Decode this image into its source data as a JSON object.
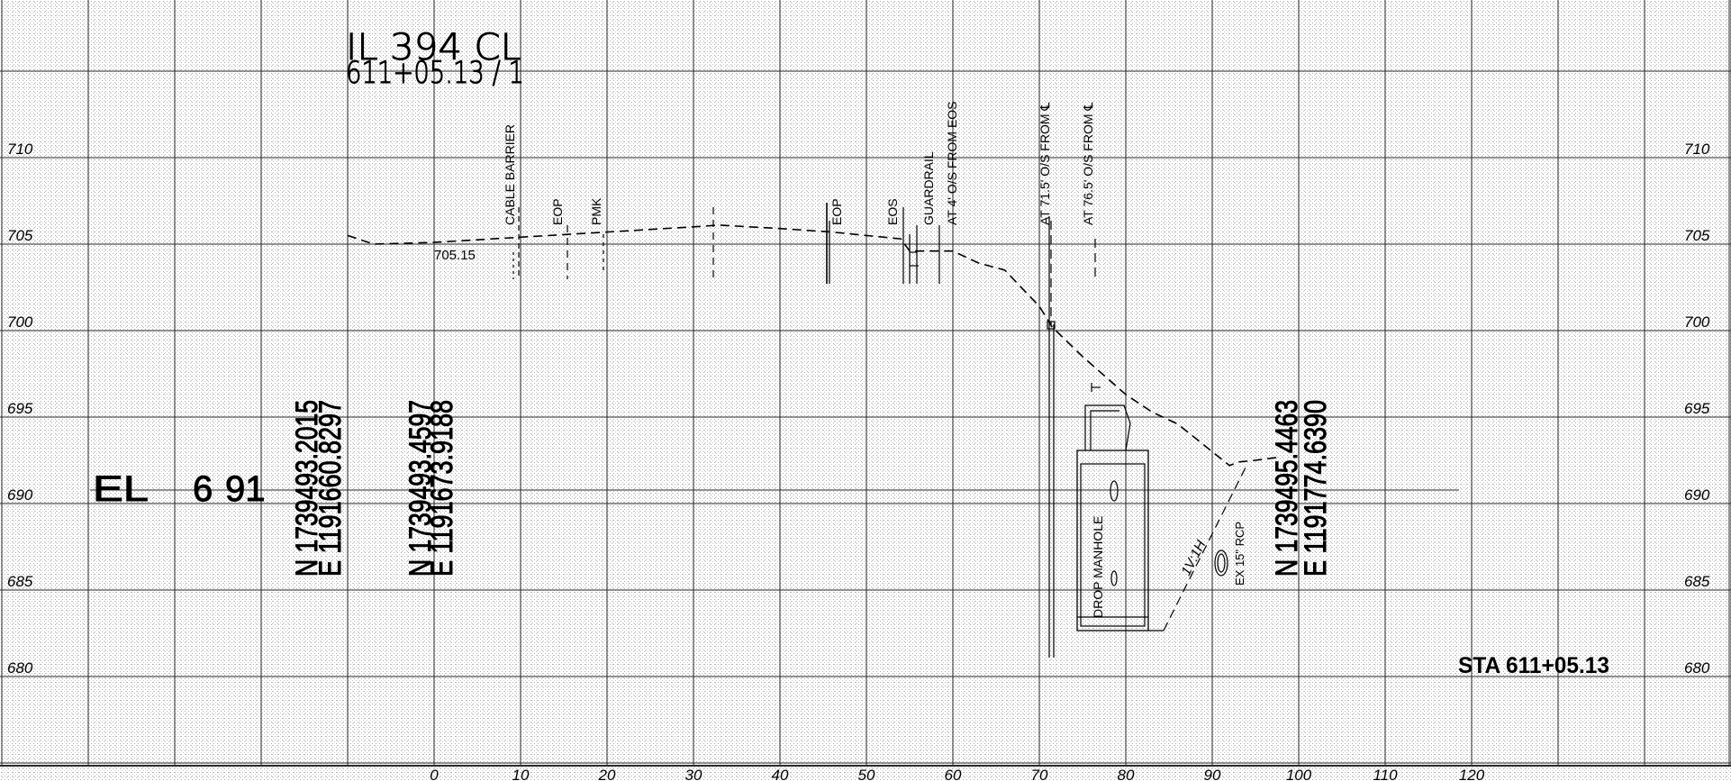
{
  "drawing": {
    "road_label": "IL 394 CL",
    "station_label": "611+05.13 / 1",
    "station_callout": "STA 611+05.13",
    "ground_elev_label": "705.15",
    "slope_label": "1V:1H",
    "elevation_axis": {
      "ticks": [
        "710",
        "705",
        "700",
        "695",
        "690",
        "685",
        "680"
      ],
      "values": [
        710,
        705,
        700,
        695,
        690,
        685,
        680
      ]
    },
    "offset_axis": {
      "ticks": [
        "0",
        "10",
        "20",
        "30",
        "40",
        "50",
        "60",
        "70",
        "80",
        "90",
        "100",
        "110",
        "120"
      ],
      "values": [
        0,
        10,
        20,
        30,
        40,
        50,
        60,
        70,
        80,
        90,
        100,
        110,
        120
      ]
    },
    "feature_labels": {
      "cable_barrier": "CABLE BARRIER",
      "eop_left": "EOP",
      "pmk": "PMK",
      "eop_right": "EOP",
      "eos": "EOS",
      "guardrail": "GUARDRAIL",
      "guardrail_offset": "AT 4' O/S FROM EOS",
      "at_71_5": "AT 71.5' O/S FROM ℄",
      "at_76_5": "AT 76.5' O/S FROM ℄",
      "drop_manhole": "DROP MANHOLE",
      "pipe": "EX 15\" RCP"
    },
    "el_label": "EL",
    "el_value_fragment": "6",
    "el_value_fragment_2": "91",
    "coords": [
      {
        "n": "N 1739493.2015",
        "e": "E 1191660.8297"
      },
      {
        "n": "N 1739493.4597",
        "e": "E 1191673.9188"
      },
      {
        "n": "N 1739495.4463",
        "e": "E 1191774.6390"
      }
    ],
    "ground_profile": {
      "offsets": [
        -10,
        -7,
        0,
        10,
        20,
        30,
        33,
        40,
        46,
        50,
        54,
        55,
        58,
        60,
        63,
        66,
        70,
        71.5,
        75,
        80,
        83,
        86,
        88,
        92,
        93,
        95,
        98
      ],
      "elevations": [
        705.5,
        705,
        705.1,
        705.4,
        705.7,
        706,
        706.1,
        705.9,
        705.7,
        705.5,
        705.3,
        704.6,
        704.6,
        704.6,
        703.9,
        703.5,
        701.4,
        700.2,
        698.5,
        696.3,
        695.3,
        694.6,
        693.8,
        692.2,
        692.4,
        692.5,
        692.7
      ]
    },
    "colors": {
      "ink": "#000000",
      "grid": "#2b2b2b",
      "stipple": "#9a9a9a"
    }
  }
}
